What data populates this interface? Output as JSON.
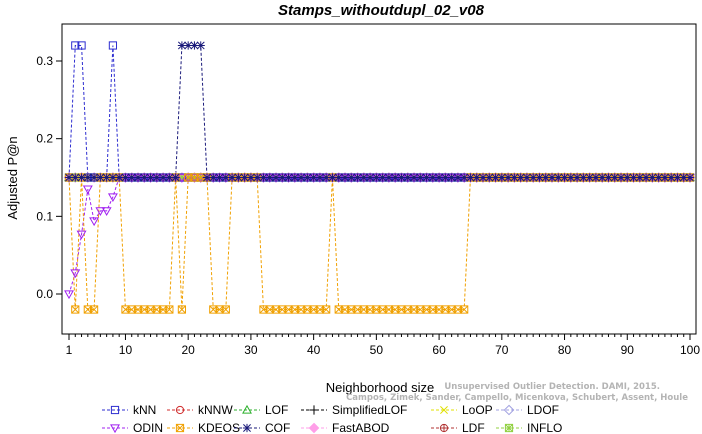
{
  "chart_data": {
    "type": "line",
    "title": "Stamps_withoutdupl_02_v08",
    "xlabel": "Neighborhood size",
    "ylabel": "Adjusted P@n",
    "xlim": [
      1,
      100
    ],
    "ylim": [
      -0.035,
      0.345
    ],
    "xticks": [
      1,
      10,
      20,
      30,
      40,
      50,
      60,
      70,
      80,
      90,
      100
    ],
    "yticks": [
      0.0,
      0.1,
      0.2,
      0.3
    ],
    "ytick_labels": [
      "0.0",
      "0.1",
      "0.2",
      "0.3"
    ],
    "grid": false,
    "legend_position": "bottom",
    "credit": [
      "Campos, Zimek, Sander, Campello, Micenkova, Schubert, Assent, Houle",
      "Unsupervised Outlier Detection. DAMI, 2015."
    ],
    "baseline": 0.15,
    "series": [
      {
        "name": "kNN",
        "color": "#2c2cd0",
        "marker": "square",
        "segments": [
          [
            1,
            0.15
          ],
          [
            2,
            0.32
          ],
          [
            3,
            0.32
          ],
          [
            4,
            0.15
          ],
          [
            7,
            0.15
          ],
          [
            8,
            0.32
          ],
          [
            9,
            0.15
          ],
          [
            100,
            0.15
          ]
        ]
      },
      {
        "name": "kNNW",
        "color": "#d02c2c",
        "marker": "circle",
        "segments": [
          [
            1,
            0.15
          ],
          [
            100,
            0.15
          ]
        ]
      },
      {
        "name": "LOF",
        "color": "#2cb02c",
        "marker": "triangle",
        "segments": [
          [
            1,
            0.15
          ],
          [
            100,
            0.15
          ]
        ]
      },
      {
        "name": "SimplifiedLOF",
        "color": "#000000",
        "marker": "plus",
        "segments": [
          [
            1,
            0.15
          ],
          [
            100,
            0.15
          ]
        ]
      },
      {
        "name": "LoOP",
        "color": "#e0e000",
        "marker": "cross",
        "segments": [
          [
            1,
            0.15
          ],
          [
            100,
            0.15
          ]
        ]
      },
      {
        "name": "LDOF",
        "color": "#a0a0e0",
        "marker": "diamond",
        "segments": [
          [
            1,
            0.15
          ],
          [
            100,
            0.15
          ]
        ]
      },
      {
        "name": "ODIN",
        "color": "#a020f0",
        "marker": "triangle-down",
        "segments": [
          [
            1,
            0.0
          ],
          [
            2,
            0.027
          ],
          [
            3,
            0.077
          ],
          [
            4,
            0.135
          ],
          [
            5,
            0.094
          ],
          [
            6,
            0.107
          ],
          [
            7,
            0.107
          ],
          [
            8,
            0.125
          ],
          [
            9,
            0.15
          ],
          [
            100,
            0.15
          ]
        ]
      },
      {
        "name": "KDEOS",
        "color": "#f0a000",
        "marker": "box-x",
        "segments": [
          [
            1,
            0.15
          ],
          [
            2,
            -0.02
          ],
          [
            3,
            0.15
          ],
          [
            4,
            -0.02
          ],
          [
            5,
            -0.02
          ],
          [
            6,
            0.15
          ],
          [
            9,
            0.15
          ],
          [
            10,
            -0.02
          ],
          [
            11,
            -0.02
          ],
          [
            12,
            -0.02
          ],
          [
            13,
            -0.02
          ],
          [
            14,
            -0.02
          ],
          [
            15,
            -0.02
          ],
          [
            16,
            -0.02
          ],
          [
            17,
            -0.02
          ],
          [
            18,
            0.15
          ],
          [
            19,
            -0.02
          ],
          [
            20,
            0.15
          ],
          [
            23,
            0.15
          ],
          [
            24,
            -0.02
          ],
          [
            25,
            -0.02
          ],
          [
            26,
            -0.02
          ],
          [
            27,
            0.15
          ],
          [
            31,
            0.15
          ],
          [
            32,
            -0.02
          ],
          [
            33,
            -0.02
          ],
          [
            34,
            -0.02
          ],
          [
            35,
            -0.02
          ],
          [
            36,
            -0.02
          ],
          [
            37,
            -0.02
          ],
          [
            38,
            -0.02
          ],
          [
            39,
            -0.02
          ],
          [
            40,
            -0.02
          ],
          [
            41,
            -0.02
          ],
          [
            42,
            -0.02
          ],
          [
            43,
            0.15
          ],
          [
            44,
            -0.02
          ],
          [
            45,
            -0.02
          ],
          [
            46,
            -0.02
          ],
          [
            47,
            -0.02
          ],
          [
            48,
            -0.02
          ],
          [
            49,
            -0.02
          ],
          [
            50,
            -0.02
          ],
          [
            51,
            -0.02
          ],
          [
            52,
            -0.02
          ],
          [
            53,
            -0.02
          ],
          [
            54,
            -0.02
          ],
          [
            55,
            -0.02
          ],
          [
            56,
            -0.02
          ],
          [
            57,
            -0.02
          ],
          [
            58,
            -0.02
          ],
          [
            59,
            -0.02
          ],
          [
            60,
            -0.02
          ],
          [
            61,
            -0.02
          ],
          [
            62,
            -0.02
          ],
          [
            63,
            -0.02
          ],
          [
            64,
            -0.02
          ],
          [
            65,
            0.15
          ],
          [
            100,
            0.15
          ]
        ]
      },
      {
        "name": "COF",
        "color": "#1a1a7a",
        "marker": "asterisk",
        "segments": [
          [
            1,
            0.15
          ],
          [
            18,
            0.15
          ],
          [
            19,
            0.32
          ],
          [
            20,
            0.32
          ],
          [
            21,
            0.32
          ],
          [
            22,
            0.32
          ],
          [
            23,
            0.15
          ],
          [
            100,
            0.15
          ]
        ]
      },
      {
        "name": "FastABOD",
        "color": "#ff9ee8",
        "marker": "diamond-filled",
        "segments": [
          [
            1,
            0.15
          ],
          [
            100,
            0.15
          ]
        ]
      },
      {
        "name": "LDF",
        "color": "#b03030",
        "marker": "circle-plus",
        "segments": [
          [
            1,
            0.15
          ],
          [
            100,
            0.15
          ]
        ]
      },
      {
        "name": "INFLO",
        "color": "#90d040",
        "marker": "star-box",
        "segments": [
          [
            1,
            0.15
          ],
          [
            100,
            0.15
          ]
        ]
      }
    ]
  }
}
